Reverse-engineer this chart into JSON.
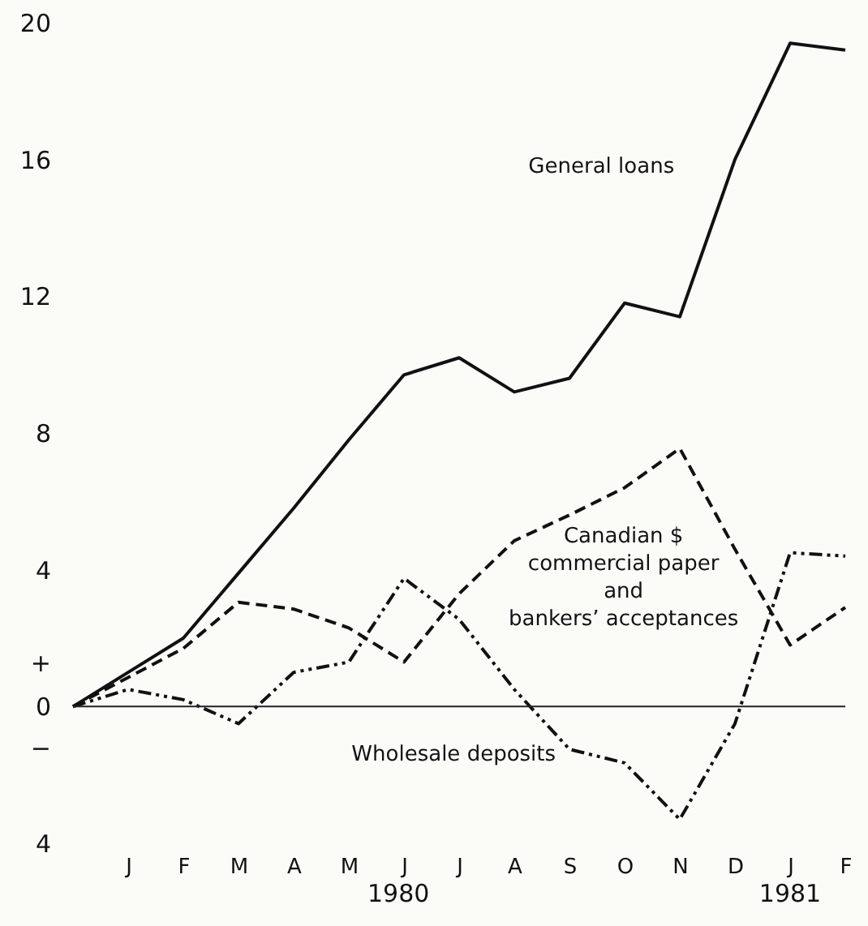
{
  "chart_data": {
    "type": "line",
    "categories": [
      null,
      "J",
      "F",
      "M",
      "A",
      "M",
      "J",
      "J",
      "A",
      "S",
      "O",
      "N",
      "D",
      "J",
      "F"
    ],
    "ylim": [
      -4,
      20
    ],
    "yticks": [
      20,
      16,
      12,
      8,
      4,
      {
        "value": 1.3,
        "label": "+"
      },
      0,
      {
        "value": -1.2,
        "label": "−"
      },
      {
        "value": -4,
        "label": "4"
      }
    ],
    "grid": false,
    "series": [
      {
        "name": "General loans",
        "color": "#111111",
        "line_style": "solid",
        "values": [
          0,
          1.0,
          2.0,
          3.9,
          5.8,
          7.8,
          9.7,
          10.2,
          9.2,
          9.6,
          11.8,
          11.4,
          16.0,
          19.4,
          19.2
        ]
      },
      {
        "name": "Canadian $\ncommercial paper\nand\nbankers’ acceptances",
        "color": "#111111",
        "line_style": "dashed",
        "values": [
          0,
          0.85,
          1.7,
          3.05,
          2.85,
          2.3,
          1.3,
          3.3,
          4.85,
          5.6,
          6.4,
          7.55,
          4.6,
          1.8,
          2.9
        ]
      },
      {
        "name": "Wholesale deposits",
        "color": "#111111",
        "line_style": "dotted",
        "values": [
          0,
          0.5,
          0.2,
          -0.5,
          1.0,
          1.3,
          3.75,
          2.55,
          0.5,
          -1.25,
          -1.65,
          -3.3,
          -0.5,
          4.5,
          4.4
        ]
      }
    ],
    "ref_lines": [
      {
        "axis": "y",
        "value": 0,
        "color": "#222222"
      }
    ],
    "annotations": [
      "1980",
      "1981"
    ]
  }
}
